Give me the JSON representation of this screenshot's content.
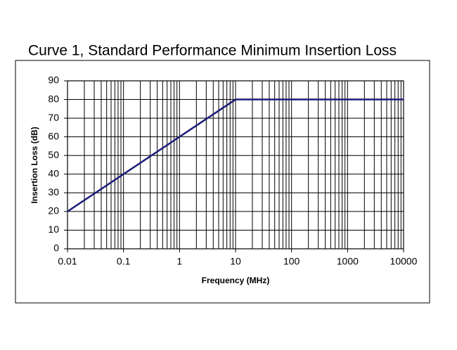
{
  "chart_data": {
    "type": "line",
    "title": "Curve 1, Standard Performance Minimum Insertion Loss",
    "x_label": "Frequency (MHz)",
    "y_label": "Insertion Loss (dB)",
    "x": [
      0.01,
      10,
      10000
    ],
    "series": [
      {
        "name": "Curve 1",
        "color": "#1c1c78",
        "values": [
          20,
          80,
          80
        ]
      }
    ],
    "xlim": [
      0.01,
      10000
    ],
    "xticks": [
      0.01,
      0.1,
      1,
      10,
      100,
      1000,
      10000
    ],
    "x_log": true,
    "x_minor_grid": true,
    "ylim": [
      0,
      90
    ],
    "yticks": [
      0,
      10,
      20,
      30,
      40,
      50,
      60,
      70,
      80,
      90
    ],
    "grid": true
  }
}
